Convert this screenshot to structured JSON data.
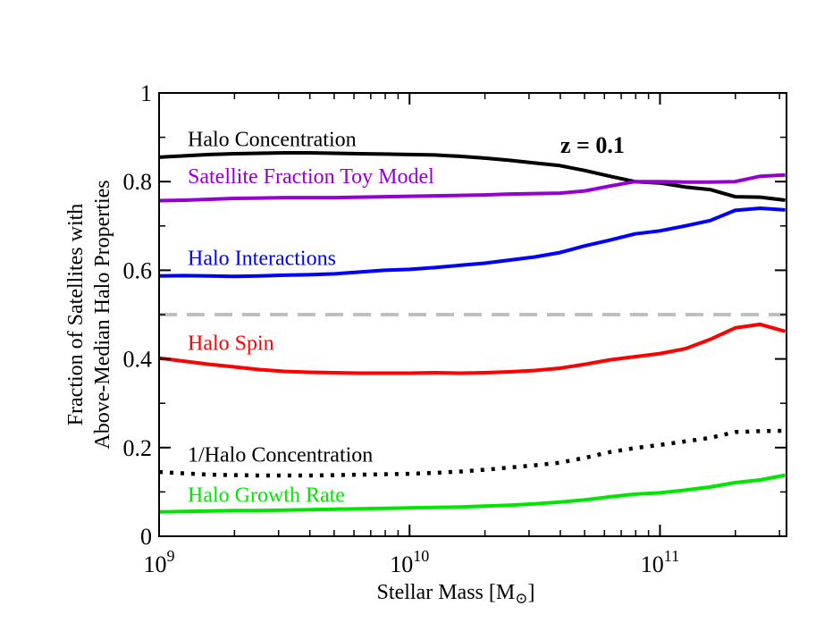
{
  "chart_data": {
    "type": "line",
    "title": "",
    "annotation": "z = 0.1",
    "xlabel_main": "Stellar Mass [M",
    "xlabel_suffix": "]",
    "xlabel_symbol": "⊙",
    "ylabel_line1": "Fraction of Satellites with",
    "ylabel_line2": "Above-Median Halo Properties",
    "xscale": "log",
    "xlim": [
      1000000000,
      320000000000
    ],
    "ylim": [
      0,
      1
    ],
    "grid": false,
    "x_ticks": [
      {
        "base": "10",
        "exp": "9",
        "value": 1000000000
      },
      {
        "base": "10",
        "exp": "10",
        "value": 10000000000
      },
      {
        "base": "10",
        "exp": "11",
        "value": 100000000000
      }
    ],
    "y_ticks": [
      "0",
      "0.2",
      "0.4",
      "0.6",
      "0.8",
      "1"
    ],
    "reference_line": {
      "y": 0.5,
      "color": "#bfbfbf",
      "style": "dashed"
    },
    "log10_x": [
      9.0,
      9.1,
      9.2,
      9.3,
      9.4,
      9.5,
      9.6,
      9.7,
      9.8,
      9.9,
      10.0,
      10.1,
      10.2,
      10.3,
      10.4,
      10.5,
      10.6,
      10.7,
      10.8,
      10.9,
      11.0,
      11.1,
      11.2,
      11.3,
      11.4,
      11.5
    ],
    "series": [
      {
        "name": "Halo Concentration",
        "color": "#000000",
        "style": "solid",
        "label_pos": "upper-left",
        "values": [
          0.855,
          0.858,
          0.861,
          0.863,
          0.864,
          0.865,
          0.865,
          0.864,
          0.863,
          0.862,
          0.861,
          0.86,
          0.857,
          0.853,
          0.848,
          0.842,
          0.836,
          0.825,
          0.812,
          0.8,
          0.797,
          0.788,
          0.782,
          0.766,
          0.765,
          0.758
        ]
      },
      {
        "name": "Satellite Fraction Toy Model",
        "color": "#9400d3",
        "style": "solid",
        "values": [
          0.757,
          0.758,
          0.76,
          0.762,
          0.763,
          0.764,
          0.764,
          0.764,
          0.765,
          0.766,
          0.767,
          0.768,
          0.769,
          0.77,
          0.772,
          0.773,
          0.774,
          0.779,
          0.79,
          0.8,
          0.8,
          0.799,
          0.799,
          0.8,
          0.812,
          0.815
        ]
      },
      {
        "name": "Halo Interactions",
        "color": "#0000ff",
        "style": "solid",
        "values": [
          0.587,
          0.588,
          0.587,
          0.586,
          0.587,
          0.589,
          0.59,
          0.592,
          0.596,
          0.6,
          0.602,
          0.606,
          0.611,
          0.616,
          0.623,
          0.63,
          0.64,
          0.655,
          0.668,
          0.682,
          0.689,
          0.7,
          0.712,
          0.735,
          0.74,
          0.736
        ]
      },
      {
        "name": "Halo Spin",
        "color": "#ff0000",
        "style": "solid",
        "values": [
          0.402,
          0.395,
          0.388,
          0.382,
          0.376,
          0.372,
          0.37,
          0.369,
          0.368,
          0.368,
          0.368,
          0.369,
          0.368,
          0.369,
          0.371,
          0.374,
          0.379,
          0.388,
          0.398,
          0.405,
          0.412,
          0.423,
          0.444,
          0.47,
          0.478,
          0.462
        ]
      },
      {
        "name": "1/Halo Concentration",
        "color": "#000000",
        "style": "dotted",
        "values": [
          0.145,
          0.142,
          0.139,
          0.138,
          0.137,
          0.137,
          0.137,
          0.138,
          0.139,
          0.14,
          0.141,
          0.143,
          0.146,
          0.15,
          0.155,
          0.16,
          0.166,
          0.177,
          0.19,
          0.199,
          0.206,
          0.214,
          0.222,
          0.235,
          0.237,
          0.238
        ]
      },
      {
        "name": "Halo Growth Rate",
        "color": "#00e600",
        "style": "solid",
        "values": [
          0.055,
          0.056,
          0.057,
          0.058,
          0.058,
          0.059,
          0.06,
          0.061,
          0.062,
          0.063,
          0.064,
          0.065,
          0.066,
          0.068,
          0.07,
          0.073,
          0.077,
          0.082,
          0.089,
          0.095,
          0.098,
          0.104,
          0.111,
          0.121,
          0.127,
          0.138
        ]
      }
    ]
  }
}
